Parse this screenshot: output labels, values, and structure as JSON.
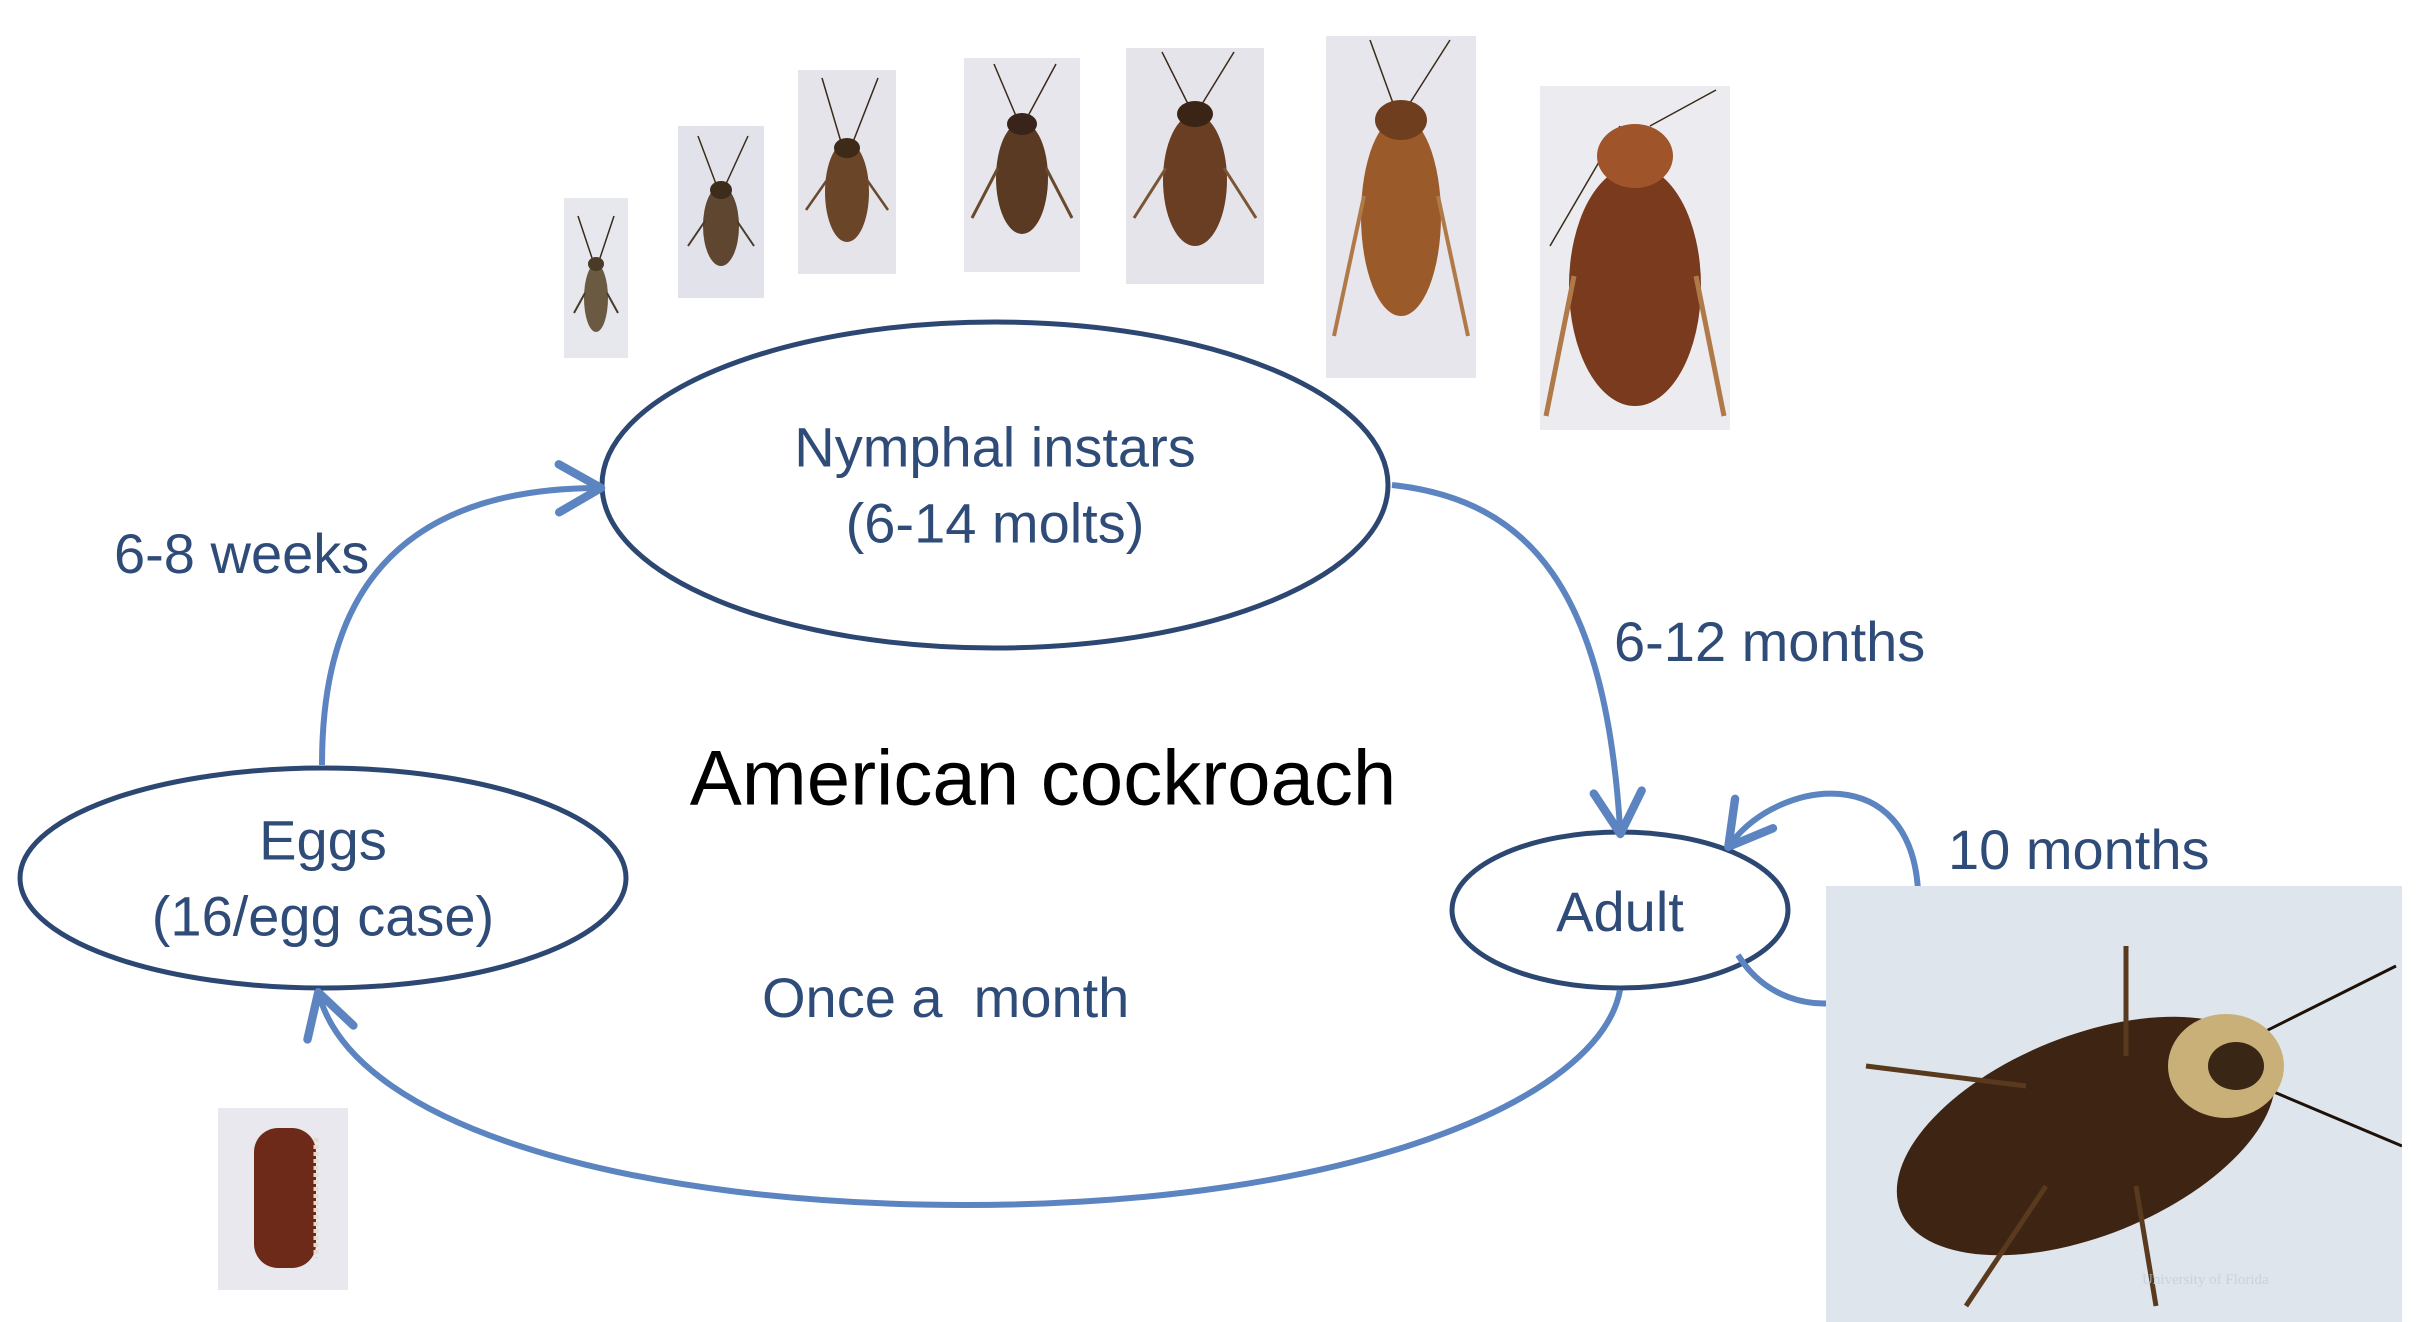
{
  "title": "American cockroach",
  "stages": {
    "nymph": {
      "line1": "Nymphal instars",
      "line2": "(6-14 molts)"
    },
    "eggs": {
      "line1": "Eggs",
      "line2": "(16/egg case)"
    },
    "adult": {
      "label": "Adult"
    }
  },
  "durations": {
    "eggs_to_nymph": "6-8 weeks",
    "nymph_to_adult": "6-12 months",
    "adult_lifespan": "10 months",
    "adult_to_eggs": "Once a  month"
  },
  "photo_credit": "University of Florida",
  "colors": {
    "ellipse_stroke": "#2c4772",
    "arrow": "#5b84c0",
    "label_text": "#2f4b78",
    "title_text": "#000000"
  },
  "icons": {
    "nymph_photos": "cockroach-nymph-icon",
    "egg_case": "egg-case-icon",
    "adult_photo": "adult-cockroach-icon"
  }
}
